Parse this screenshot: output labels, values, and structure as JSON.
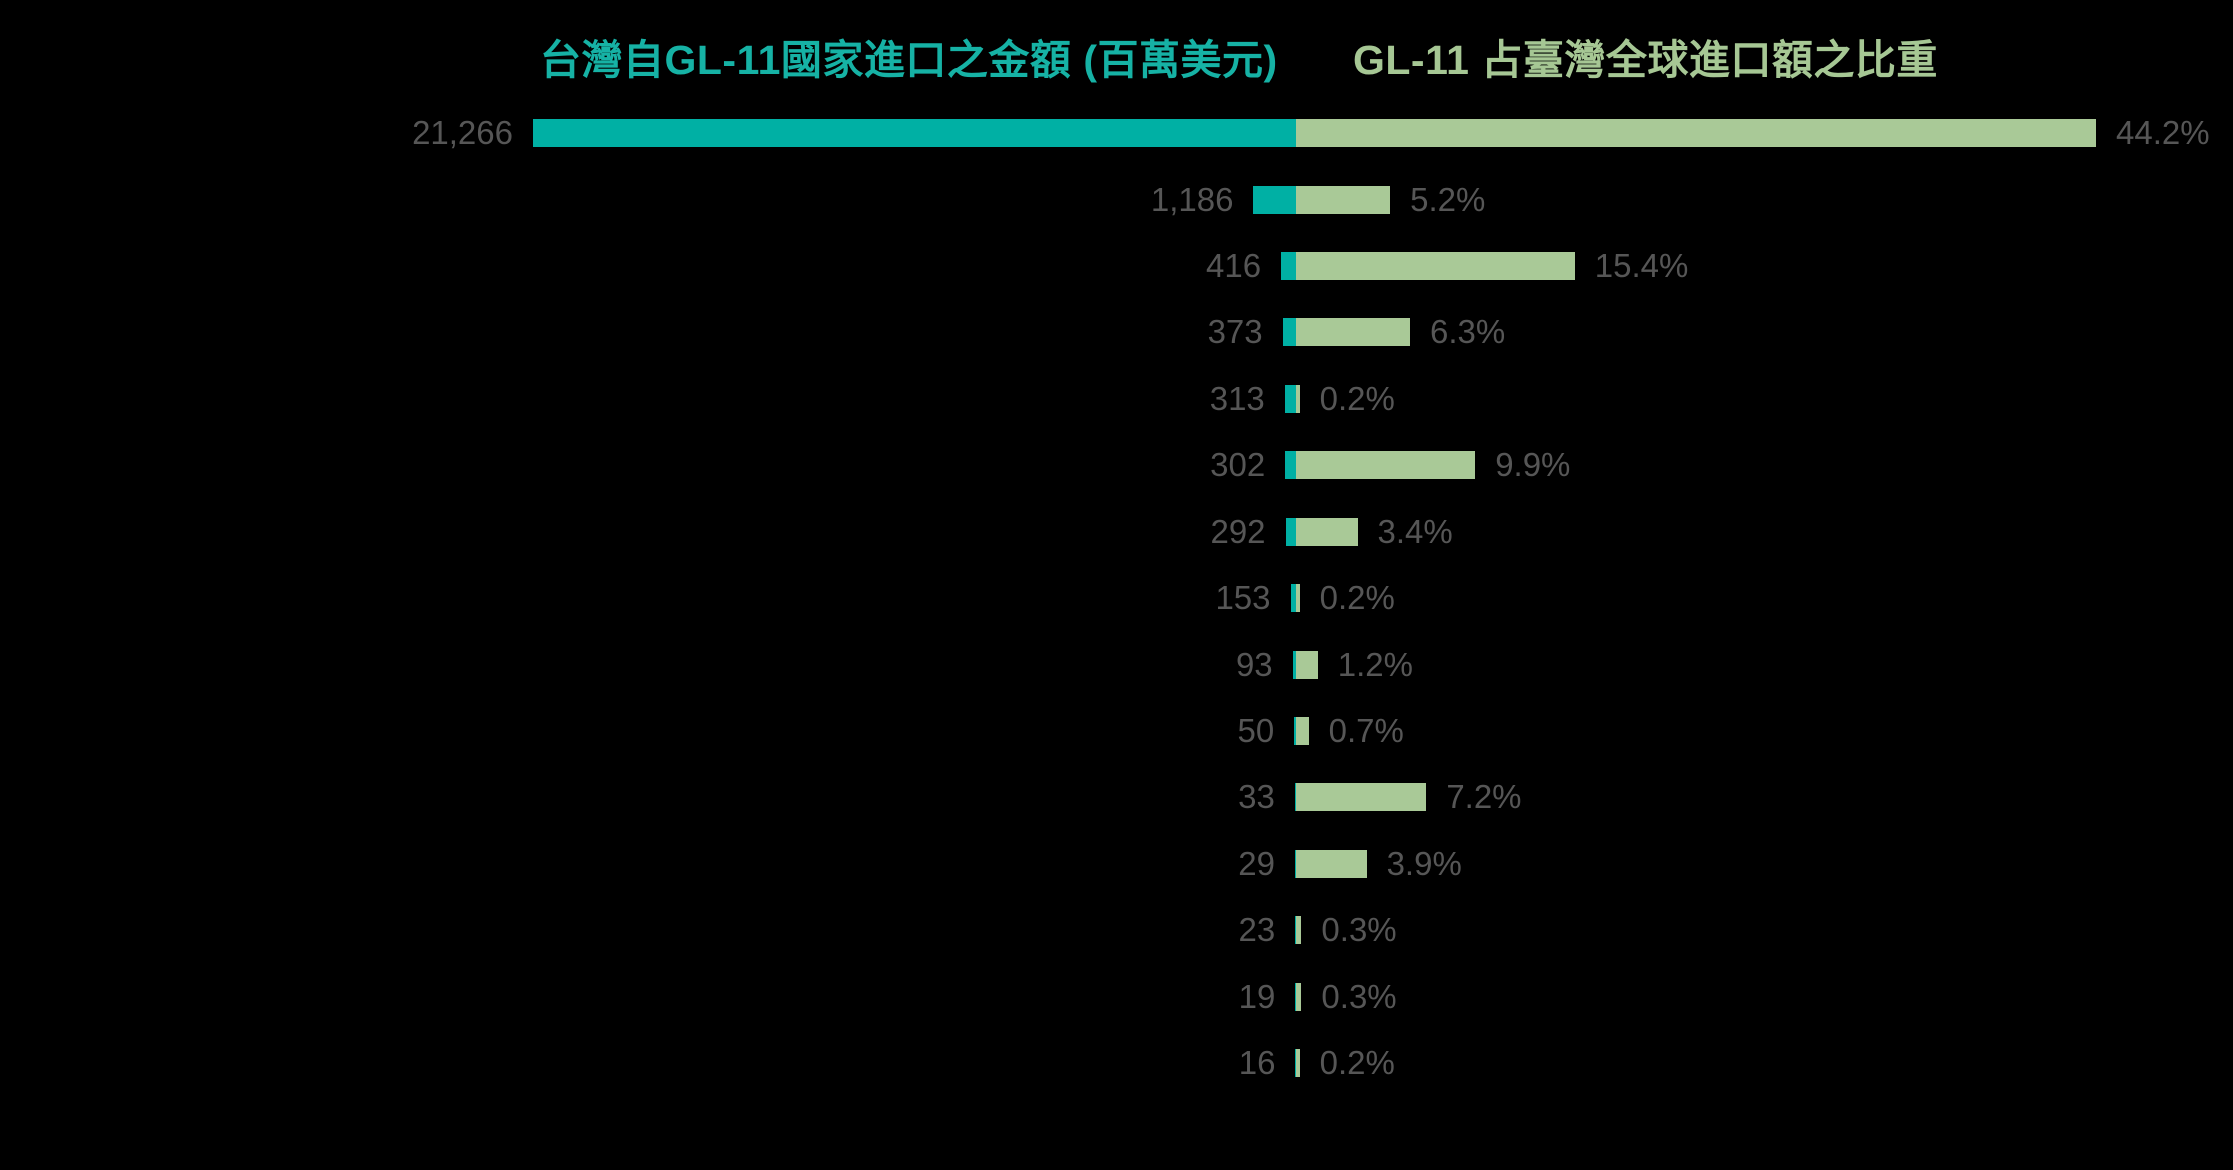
{
  "background_color": "#000000",
  "titles": {
    "left": {
      "text": "台灣自GL-11國家進口之金額 (百萬美元)",
      "color": "#16b2a5"
    },
    "right": {
      "text": "GL-11 占臺灣全球進口額之比重",
      "color": "#a6c794"
    }
  },
  "chart_data": {
    "type": "bar",
    "layout": "diverging-horizontal, shared center axis, 15 rows without visible category labels",
    "grid": false,
    "legend_position": "series titles above each half of the chart",
    "label_color": "#565656",
    "series": [
      {
        "name": "台灣自GL-11國家進口之金額 (百萬美元)",
        "side": "left",
        "color": "#00b0a4",
        "axis_max": 21266,
        "values": [
          21266,
          1186,
          416,
          373,
          313,
          302,
          292,
          153,
          93,
          50,
          33,
          29,
          23,
          19,
          16
        ],
        "labels": [
          "21,266",
          "1,186",
          "416",
          "373",
          "313",
          "302",
          "292",
          "153",
          "93",
          "50",
          "33",
          "29",
          "23",
          "19",
          "16"
        ]
      },
      {
        "name": "GL-11 占臺灣全球進口額之比重",
        "side": "right",
        "color": "#a9c997",
        "unit": "%",
        "axis_max": 44.2,
        "values": [
          44.2,
          5.2,
          15.4,
          6.3,
          0.2,
          9.9,
          3.4,
          0.2,
          1.2,
          0.7,
          7.2,
          3.9,
          0.3,
          0.3,
          0.2
        ],
        "labels": [
          "44.2%",
          "5.2%",
          "15.4%",
          "6.3%",
          "0.2%",
          "9.9%",
          "3.4%",
          "0.2%",
          "1.2%",
          "0.7%",
          "7.2%",
          "3.9%",
          "0.3%",
          "0.3%",
          "0.2%"
        ]
      }
    ]
  }
}
